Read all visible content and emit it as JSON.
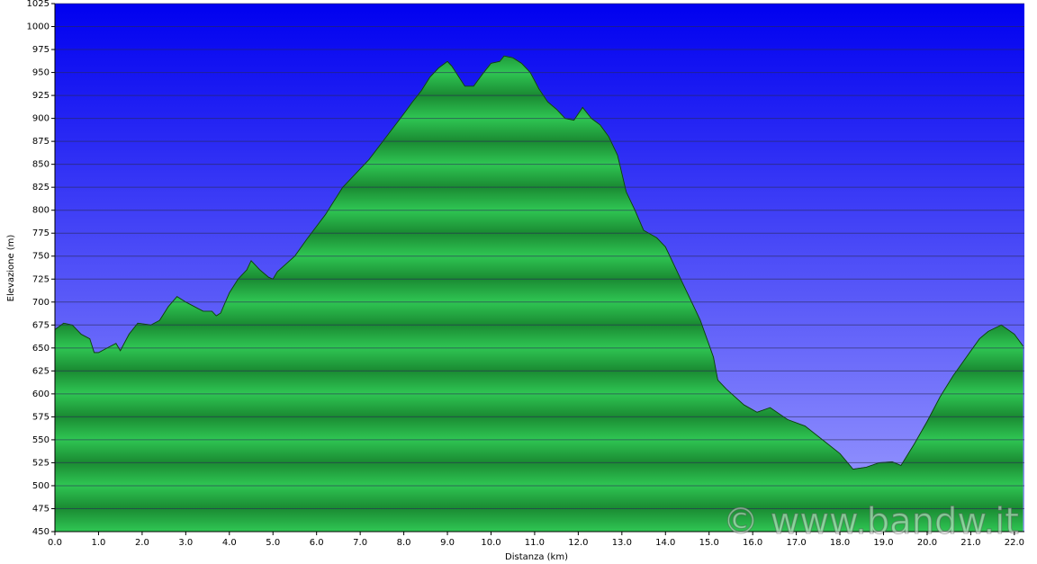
{
  "chart_data": {
    "type": "area",
    "xlabel": "Distanza  (km)",
    "ylabel": "Elevazione (m)",
    "watermark": "© www.bandw.it",
    "color": "#1fa03a",
    "x": [
      0,
      0.2,
      0.4,
      0.6,
      0.8,
      0.9,
      1.0,
      1.2,
      1.4,
      1.5,
      1.7,
      1.9,
      2.2,
      2.4,
      2.6,
      2.8,
      3.0,
      3.2,
      3.4,
      3.6,
      3.7,
      3.8,
      4.0,
      4.2,
      4.4,
      4.5,
      4.7,
      4.9,
      5.0,
      5.1,
      5.5,
      5.8,
      6.2,
      6.6,
      6.8,
      7.2,
      7.6,
      8.0,
      8.2,
      8.4,
      8.6,
      8.8,
      9.0,
      9.1,
      9.4,
      9.6,
      9.8,
      10.0,
      10.2,
      10.3,
      10.5,
      10.7,
      10.9,
      11.1,
      11.3,
      11.5,
      11.7,
      11.9,
      12.1,
      12.3,
      12.5,
      12.7,
      12.9,
      13.1,
      13.3,
      13.5,
      13.8,
      14.0,
      14.2,
      14.5,
      14.8,
      15.1,
      15.2,
      15.4,
      15.8,
      16.1,
      16.4,
      16.8,
      17.2,
      17.6,
      18.0,
      18.3,
      18.6,
      18.9,
      19.2,
      19.4,
      19.7,
      20.0,
      20.3,
      20.6,
      20.9,
      21.2,
      21.4,
      21.7,
      22.0,
      22.2
    ],
    "values": [
      670,
      677,
      675,
      665,
      660,
      645,
      645,
      650,
      655,
      647,
      665,
      677,
      675,
      680,
      695,
      706,
      700,
      695,
      690,
      690,
      685,
      688,
      710,
      725,
      735,
      745,
      735,
      727,
      725,
      733,
      750,
      770,
      795,
      825,
      835,
      855,
      880,
      905,
      918,
      930,
      945,
      955,
      962,
      957,
      935,
      935,
      948,
      960,
      962,
      968,
      966,
      960,
      950,
      932,
      918,
      910,
      900,
      898,
      912,
      900,
      893,
      880,
      860,
      820,
      800,
      778,
      770,
      760,
      740,
      710,
      680,
      640,
      615,
      605,
      588,
      580,
      585,
      572,
      565,
      550,
      535,
      518,
      520,
      525,
      526,
      522,
      545,
      570,
      597,
      620,
      640,
      660,
      668,
      675,
      665,
      652
    ],
    "xlim": [
      0,
      22.23
    ],
    "ylim": [
      450,
      1025
    ],
    "xticks": [
      {
        "value": 0,
        "label": "0.0"
      },
      {
        "value": 1,
        "label": "1.0"
      },
      {
        "value": 2,
        "label": "2.0"
      },
      {
        "value": 3,
        "label": "3.0"
      },
      {
        "value": 4,
        "label": "4.0"
      },
      {
        "value": 5,
        "label": "5.0"
      },
      {
        "value": 6,
        "label": "6.0"
      },
      {
        "value": 7,
        "label": "7.0"
      },
      {
        "value": 8,
        "label": "8.0"
      },
      {
        "value": 9,
        "label": "9.0"
      },
      {
        "value": 10,
        "label": "10.0"
      },
      {
        "value": 11,
        "label": "11.0"
      },
      {
        "value": 12,
        "label": "12.0"
      },
      {
        "value": 13,
        "label": "13.0"
      },
      {
        "value": 14,
        "label": "14.0"
      },
      {
        "value": 15,
        "label": "15.0"
      },
      {
        "value": 16,
        "label": "16.0"
      },
      {
        "value": 17,
        "label": "17.0"
      },
      {
        "value": 18,
        "label": "18.0"
      },
      {
        "value": 19,
        "label": "19.0"
      },
      {
        "value": 20,
        "label": "20.0"
      },
      {
        "value": 21,
        "label": "21.0"
      },
      {
        "value": 22,
        "label": "22.0"
      }
    ],
    "yticks": [
      450,
      475,
      500,
      525,
      550,
      575,
      600,
      625,
      650,
      675,
      700,
      725,
      750,
      775,
      800,
      825,
      850,
      875,
      900,
      925,
      950,
      975,
      1000,
      1025
    ],
    "grid": true
  }
}
